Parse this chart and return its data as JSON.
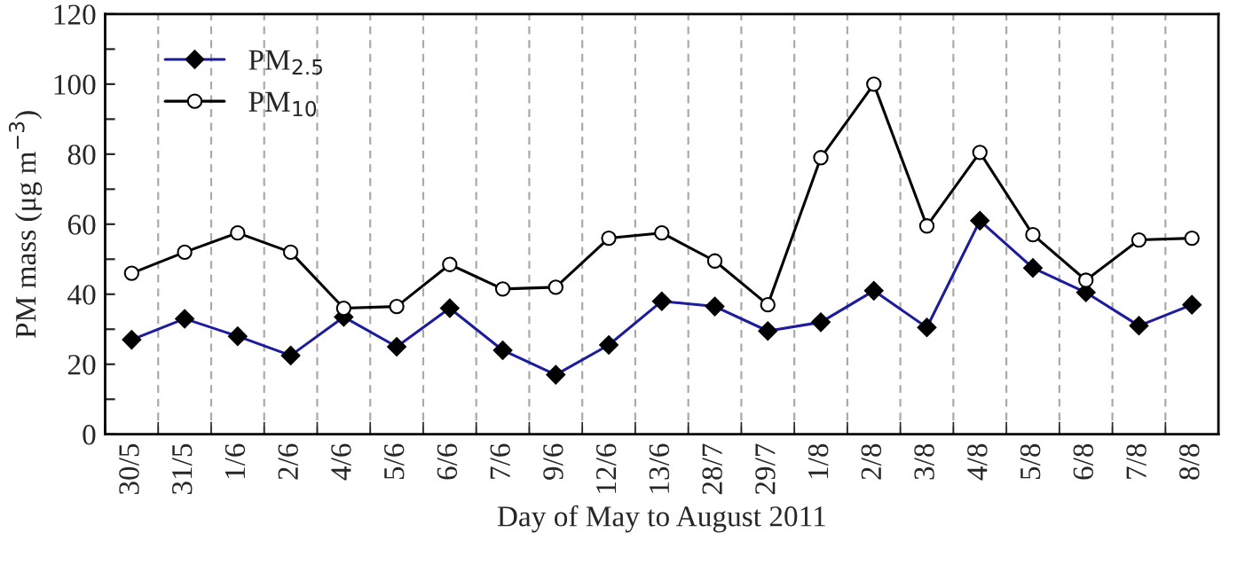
{
  "chart_data": {
    "type": "line",
    "xlabel": "Day of May to August 2011",
    "ylabel": "PM mass (μg m$^{−3}$)",
    "categories": [
      "30/5",
      "31/5",
      "1/6",
      "2/6",
      "4/6",
      "5/6",
      "6/6",
      "7/6",
      "9/6",
      "12/6",
      "13/6",
      "28/7",
      "29/7",
      "1/8",
      "2/8",
      "3/8",
      "4/8",
      "5/8",
      "6/8",
      "7/8",
      "8/8"
    ],
    "series": [
      {
        "name": "PM$_{2.5}$",
        "color": "#1c1c9c",
        "marker": "diamond",
        "values": [
          27,
          33,
          28,
          22.5,
          33.5,
          25,
          36,
          24,
          17,
          25.5,
          38,
          36.5,
          29.5,
          32,
          41,
          30.5,
          61,
          47.5,
          40.5,
          31,
          37
        ]
      },
      {
        "name": "PM$_{10}$",
        "color": "#000000",
        "marker": "circle",
        "values": [
          46,
          52,
          57.5,
          52,
          36,
          36.5,
          48.5,
          41.5,
          42,
          56,
          57.5,
          49.5,
          37,
          79,
          100,
          59.5,
          80.5,
          57,
          44,
          55.5,
          56
        ]
      }
    ],
    "ylim": [
      0,
      120
    ],
    "yticks": [
      0,
      {
        "value": 10,
        "label": null
      },
      20,
      {
        "value": 30,
        "label": null
      },
      40,
      {
        "value": 50,
        "label": null
      },
      60,
      {
        "value": 70,
        "label": null
      },
      80,
      {
        "value": 90,
        "label": null
      },
      100,
      {
        "value": 110,
        "label": null
      },
      120
    ],
    "grid": "x",
    "legend": "top left",
    "line_style": "solid"
  }
}
